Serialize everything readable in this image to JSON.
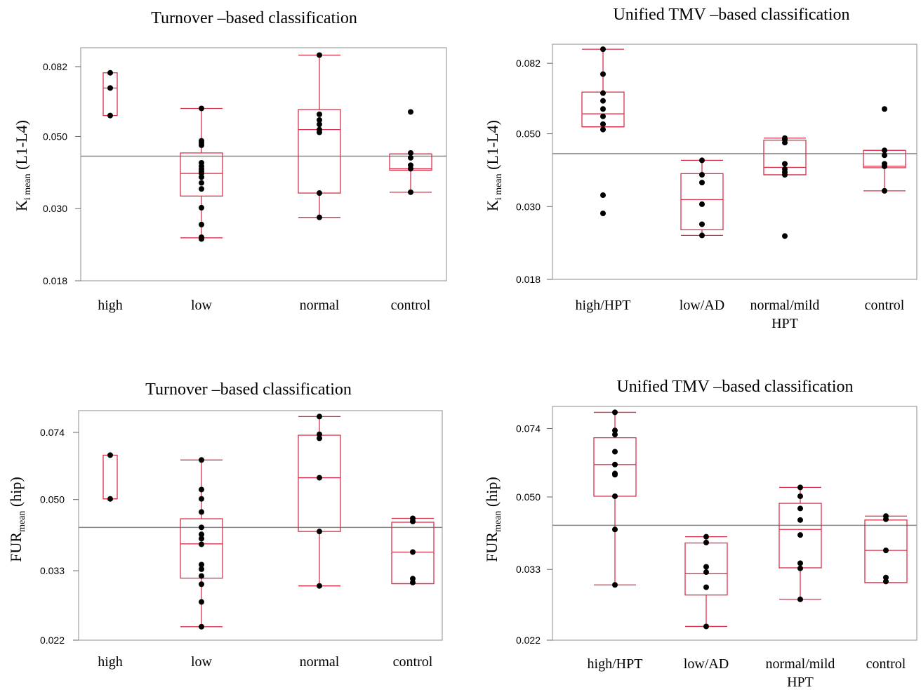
{
  "chart_data": [
    {
      "type": "box",
      "title": "Turnover –based classification",
      "ylabel_main": "K",
      "ylabel_sub": "i mean",
      "ylabel_tail": " (L1-L4)",
      "yticks": [
        "0.082",
        "0.050",
        "0.030",
        "0.018"
      ],
      "ylim": [
        0.018,
        0.091
      ],
      "scale": "log",
      "reference_line": 0.0435,
      "categories": [
        {
          "label": "high",
          "label2": "",
          "points": [
            0.0785,
            0.0705,
            0.058
          ],
          "box": {
            "q1": 0.058,
            "median": 0.0705,
            "q3": 0.0785
          },
          "whiskers": null
        },
        {
          "label": "low",
          "label2": "",
          "points": [
            0.061,
            0.0485,
            0.0478,
            0.047,
            0.0415,
            0.0405,
            0.0397,
            0.039,
            0.0385,
            0.0375,
            0.036,
            0.0345,
            0.0302,
            0.0268,
            0.0245,
            0.0242
          ],
          "box": {
            "q1": 0.0328,
            "median": 0.0385,
            "q3": 0.0445
          },
          "whiskers": [
            0.0244,
            0.061
          ]
        },
        {
          "label": "normal",
          "label2": "",
          "points": [
            0.089,
            0.0585,
            0.0562,
            0.0545,
            0.0525,
            0.0515,
            0.0335,
            0.0282
          ],
          "box": {
            "q1": 0.0335,
            "median": 0.0525,
            "q3": 0.0605
          },
          "whiskers": [
            0.0282,
            0.089
          ]
        },
        {
          "label": "control",
          "label2": "",
          "points": [
            0.0595,
            0.0445,
            0.043,
            0.0408,
            0.0398,
            0.0337
          ],
          "box": {
            "q1": 0.0394,
            "median": 0.0398,
            "q3": 0.0442
          },
          "whiskers": [
            0.0337,
            0.0442
          ]
        }
      ]
    },
    {
      "type": "box",
      "title": "Unified TMV –based classification",
      "ylabel_main": "K",
      "ylabel_sub": "i mean",
      "ylabel_tail": " (L1-L4)",
      "yticks": [
        "0.082",
        "0.050",
        "0.030",
        "0.018"
      ],
      "ylim": [
        0.018,
        0.091
      ],
      "scale": "log",
      "reference_line": 0.0435,
      "categories": [
        {
          "label": "high/HPT",
          "label2": "",
          "points": [
            0.0905,
            0.076,
            0.0665,
            0.063,
            0.0595,
            0.0565,
            0.0535,
            0.0515,
            0.0325,
            0.0286
          ],
          "box": {
            "q1": 0.0525,
            "median": 0.0575,
            "q3": 0.067
          },
          "whiskers": [
            0.0525,
            0.0905
          ]
        },
        {
          "label": "low/AD",
          "label2": "",
          "points": [
            0.0415,
            0.0375,
            0.0355,
            0.0305,
            0.0265,
            0.0245
          ],
          "box": {
            "q1": 0.0255,
            "median": 0.0315,
            "q3": 0.0378
          },
          "whiskers": [
            0.0245,
            0.0415
          ]
        },
        {
          "label": "normal/mild",
          "label2": "HPT",
          "points": [
            0.0485,
            0.048,
            0.047,
            0.0405,
            0.039,
            0.0382,
            0.0375,
            0.0244
          ],
          "box": {
            "q1": 0.0375,
            "median": 0.0395,
            "q3": 0.0478
          },
          "whiskers": [
            0.0375,
            0.0485
          ]
        },
        {
          "label": "control",
          "label2": "",
          "points": [
            0.0595,
            0.0445,
            0.043,
            0.0405,
            0.0398,
            0.0335
          ],
          "box": {
            "q1": 0.0394,
            "median": 0.0398,
            "q3": 0.0445
          },
          "whiskers": [
            0.0335,
            0.0445
          ]
        }
      ]
    },
    {
      "type": "box",
      "title": "Turnover –based classification",
      "ylabel_main": "FUR",
      "ylabel_sub": "mean",
      "ylabel_tail": " (hip)",
      "yticks": [
        "0.074",
        "0.050",
        "0.033",
        "0.022"
      ],
      "ylim": [
        0.022,
        0.082
      ],
      "scale": "log",
      "reference_line": 0.0425,
      "categories": [
        {
          "label": "high",
          "label2": "",
          "points": [
            0.0648,
            0.0502
          ],
          "box": {
            "q1": 0.0502,
            "median": 0.0502,
            "q3": 0.0648
          },
          "whiskers": null
        },
        {
          "label": "low",
          "label2": "",
          "points": [
            0.063,
            0.053,
            0.0502,
            0.0465,
            0.0425,
            0.0408,
            0.0398,
            0.0385,
            0.0342,
            0.0333,
            0.032,
            0.0305,
            0.0275,
            0.0238
          ],
          "box": {
            "q1": 0.0316,
            "median": 0.0386,
            "q3": 0.0447
          },
          "whiskers": [
            0.0238,
            0.063
          ]
        },
        {
          "label": "normal",
          "label2": "",
          "points": [
            0.0812,
            0.0732,
            0.0715,
            0.0568,
            0.0415,
            0.0302
          ],
          "box": {
            "q1": 0.0415,
            "median": 0.0568,
            "q3": 0.0728
          },
          "whiskers": [
            0.0302,
            0.0812
          ]
        },
        {
          "label": "control",
          "label2": "",
          "points": [
            0.0448,
            0.044,
            0.0368,
            0.0315,
            0.0308
          ],
          "box": {
            "q1": 0.0306,
            "median": 0.0368,
            "q3": 0.0438
          },
          "whiskers": [
            0.0306,
            0.0448
          ]
        }
      ]
    },
    {
      "type": "box",
      "title": "Unified TMV –based classification",
      "ylabel_main": "FUR",
      "ylabel_sub": "mean",
      "ylabel_tail": " (hip)",
      "yticks": [
        "0.074",
        "0.050",
        "0.033",
        "0.022"
      ],
      "ylim": [
        0.022,
        0.082
      ],
      "scale": "log",
      "reference_line": 0.0425,
      "categories": [
        {
          "label": "high/HPT",
          "label2": "",
          "points": [
            0.0812,
            0.0732,
            0.0715,
            0.0648,
            0.0602,
            0.0572,
            0.0568,
            0.0502,
            0.0415,
            0.0302
          ],
          "box": {
            "q1": 0.0502,
            "median": 0.0602,
            "q3": 0.0702
          },
          "whiskers": [
            0.0302,
            0.0812
          ]
        },
        {
          "label": "low/AD",
          "label2": "",
          "points": [
            0.0398,
            0.0385,
            0.0335,
            0.0325,
            0.0298,
            0.0238
          ],
          "box": {
            "q1": 0.0285,
            "median": 0.0322,
            "q3": 0.0384
          },
          "whiskers": [
            0.0238,
            0.0398
          ]
        },
        {
          "label": "normal/mild",
          "label2": "HPT",
          "points": [
            0.0528,
            0.0502,
            0.0468,
            0.0438,
            0.0402,
            0.0342,
            0.0332,
            0.0278
          ],
          "box": {
            "q1": 0.0333,
            "median": 0.0415,
            "q3": 0.0482
          },
          "whiskers": [
            0.0278,
            0.0528
          ]
        },
        {
          "label": "control",
          "label2": "",
          "points": [
            0.0448,
            0.044,
            0.0368,
            0.0315,
            0.0308
          ],
          "box": {
            "q1": 0.0306,
            "median": 0.0368,
            "q3": 0.0438
          },
          "whiskers": [
            0.0306,
            0.0448
          ]
        }
      ]
    }
  ]
}
